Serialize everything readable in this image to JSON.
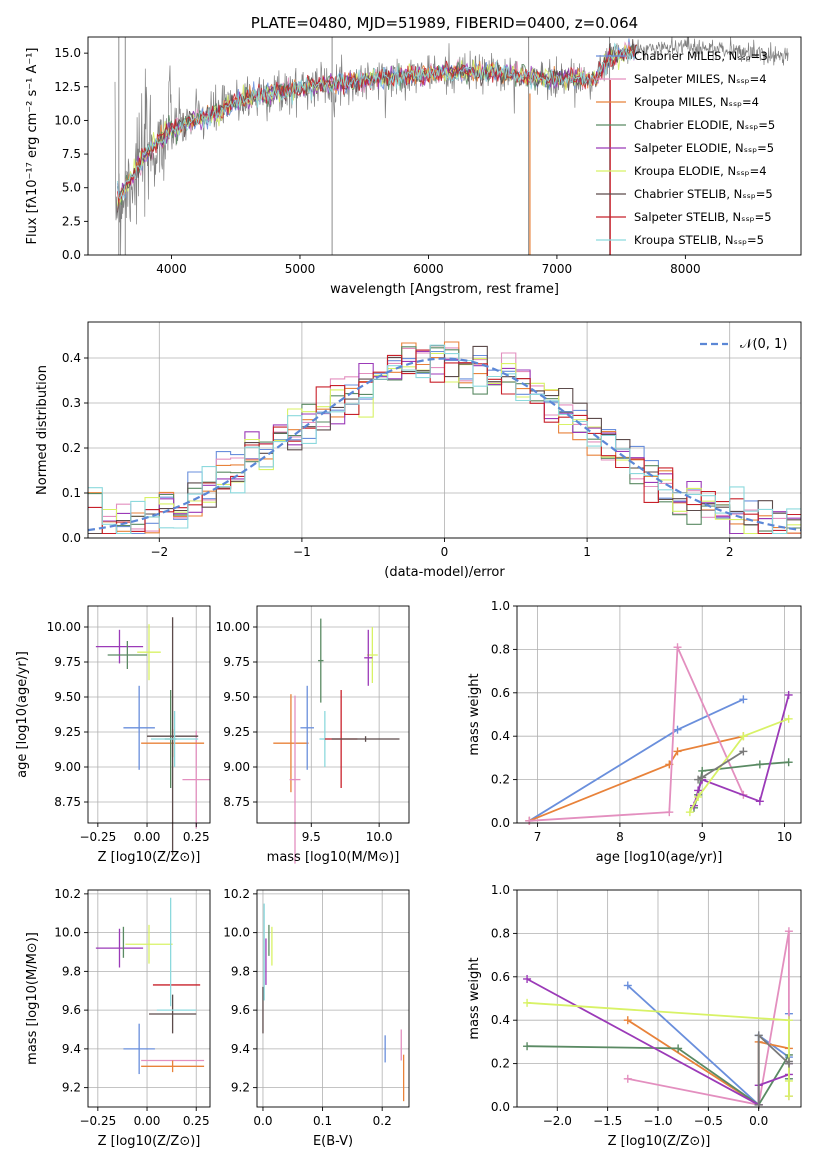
{
  "colors": [
    "#6a8fdc",
    "#e8823a",
    "#dd8c6d",
    "#5a8a63",
    "#9b3ab8",
    "#d8f266",
    "#5c4b4b",
    "#c8202a",
    "#8cd9dd",
    "#e38fbf",
    "#7a7a7a"
  ],
  "chart_data": [
    {
      "id": "spectrum",
      "type": "line",
      "title": "PLATE=0480, MJD=51989, FIBERID=0400, z=0.064",
      "xlabel": "wavelength [Angstrom, rest frame]",
      "ylabel": "Flux [fλ10⁻¹⁷ erg cm⁻² s⁻¹ A⁻¹]",
      "xlim": [
        3350,
        8900
      ],
      "ylim": [
        0,
        16.2
      ],
      "xticks": [
        4000,
        5000,
        6000,
        7000,
        8000
      ],
      "yticks": [
        0.0,
        2.5,
        5.0,
        7.5,
        10.0,
        12.5,
        15.0
      ],
      "grid": false,
      "legend_position": "upper right",
      "x": [
        3600,
        3700,
        3800,
        3900,
        4000,
        4100,
        4200,
        4300,
        4400,
        4500,
        4700,
        4900,
        5100,
        5300,
        5500,
        5700,
        5900,
        6100,
        6300,
        6500,
        6700,
        6900,
        7100,
        7300,
        7400,
        7600,
        7800,
        8000,
        8200,
        8400,
        8600
      ],
      "model_flux": [
        4.3,
        6.0,
        7.5,
        8.5,
        9.3,
        9.6,
        10.2,
        10.4,
        10.8,
        11.4,
        11.9,
        12.2,
        12.6,
        12.7,
        13.0,
        13.2,
        13.4,
        13.5,
        13.6,
        13.6,
        13.3,
        13.1,
        13.2,
        13.0,
        14.6,
        15.2,
        15.4,
        15.6,
        15.3,
        15.2,
        14.9
      ],
      "data_series_name": "data",
      "series": [
        {
          "name": "Chabrier MILES, N_SSP=3",
          "color": "#6a8fdc"
        },
        {
          "name": "Salpeter MILES, N_SSP=4",
          "color": "#e38fbf"
        },
        {
          "name": "Kroupa MILES, N_SSP=4",
          "color": "#e8823a"
        },
        {
          "name": "Chabrier ELODIE, N_SSP=5",
          "color": "#5a8a63"
        },
        {
          "name": "Salpeter ELODIE, N_SSP=5",
          "color": "#9b3ab8"
        },
        {
          "name": "Kroupa ELODIE, N_SSP=4",
          "color": "#d8f266"
        },
        {
          "name": "Chabrier STELIB, N_SSP=5",
          "color": "#5c4b4b"
        },
        {
          "name": "Salpeter STELIB, N_SSP=5",
          "color": "#c8202a"
        },
        {
          "name": "Kroupa STELIB, N_SSP=5",
          "color": "#8cd9dd"
        }
      ]
    },
    {
      "id": "residuals",
      "type": "histogram",
      "xlabel": "(data-model)/error",
      "ylabel": "Normed distribution",
      "xlim": [
        -2.5,
        2.5
      ],
      "ylim": [
        0,
        0.48
      ],
      "xticks": [
        -2,
        -1,
        0,
        1,
        2
      ],
      "yticks": [
        0.0,
        0.1,
        0.2,
        0.3,
        0.4
      ],
      "grid": true,
      "bin_width": 0.1,
      "legend": [
        {
          "name": "𝒩(0, 1)",
          "style": "dashed",
          "color": "#5b87d6"
        }
      ],
      "legend_position": "upper right"
    },
    {
      "id": "age_vs_Z",
      "type": "errorbar",
      "xlabel": "Z [log10(Z/Z⊙)]",
      "ylabel": "age  [log10(age/yr)]",
      "xlim": [
        -0.3,
        0.32
      ],
      "ylim": [
        8.6,
        10.15
      ],
      "xticks": [
        -0.25,
        0.0,
        0.25
      ],
      "yticks": [
        8.75,
        9.0,
        9.25,
        9.5,
        9.75,
        10.0
      ],
      "grid": true,
      "points": [
        {
          "x": -0.04,
          "y": 9.28,
          "xerr": 0.08,
          "yerr": 0.3,
          "color": "#6a8fdc"
        },
        {
          "x": 0.25,
          "y": 8.91,
          "xerr": 0.07,
          "yerr": 0.35,
          "color": "#e38fbf"
        },
        {
          "x": 0.13,
          "y": 9.17,
          "xerr": 0.16,
          "yerr": 0.1,
          "color": "#e8823a"
        },
        {
          "x": 0.12,
          "y": 9.2,
          "xerr": 0.03,
          "yerr": 0.35,
          "color": "#5a8a63"
        },
        {
          "x": -0.14,
          "y": 9.86,
          "xerr": 0.12,
          "yerr": 0.12,
          "color": "#9b3ab8"
        },
        {
          "x": 0.01,
          "y": 9.82,
          "xerr": 0.06,
          "yerr": 0.2,
          "color": "#d8f266"
        },
        {
          "x": -0.1,
          "y": 9.8,
          "xerr": 0.1,
          "yerr": 0.1,
          "color": "#5a8a63"
        },
        {
          "x": 0.13,
          "y": 9.22,
          "xerr": 0.13,
          "yerr": 0.85,
          "color": "#5c4b4b"
        },
        {
          "x": 0.14,
          "y": 9.2,
          "xerr": 0.12,
          "yerr": 0.2,
          "color": "#8cd9dd"
        }
      ]
    },
    {
      "id": "age_vs_mass",
      "type": "errorbar",
      "xlabel": "mass [log10(M/M⊙)]",
      "ylabel": "",
      "xlim": [
        9.1,
        10.22
      ],
      "ylim": [
        8.6,
        10.15
      ],
      "xticks": [
        9.5,
        10.0
      ],
      "yticks": [
        8.75,
        9.0,
        9.25,
        9.5,
        9.75,
        10.0
      ],
      "grid": true,
      "points": [
        {
          "x": 9.35,
          "y": 9.17,
          "xerr": 0.13,
          "yerr": 0.35,
          "color": "#e8823a"
        },
        {
          "x": 9.38,
          "y": 8.91,
          "xerr": 0.04,
          "yerr": 0.6,
          "color": "#e38fbf"
        },
        {
          "x": 9.47,
          "y": 9.28,
          "xerr": 0.05,
          "yerr": 0.3,
          "color": "#6a8fdc"
        },
        {
          "x": 9.6,
          "y": 9.2,
          "xerr": 0.04,
          "yerr": 0.2,
          "color": "#8cd9dd"
        },
        {
          "x": 9.72,
          "y": 9.2,
          "xerr": 0.12,
          "yerr": 0.35,
          "color": "#c8202a"
        },
        {
          "x": 9.9,
          "y": 9.2,
          "xerr": 0.25,
          "yerr": 0.02,
          "color": "#5c4b4b"
        },
        {
          "x": 9.95,
          "y": 9.8,
          "xerr": 0.04,
          "yerr": 0.2,
          "color": "#d8f266"
        },
        {
          "x": 9.92,
          "y": 9.78,
          "xerr": 0.03,
          "yerr": 0.2,
          "color": "#9b3ab8"
        },
        {
          "x": 9.57,
          "y": 9.76,
          "xerr": 0.02,
          "yerr": 0.3,
          "color": "#5a8a63"
        }
      ]
    },
    {
      "id": "weight_vs_age",
      "type": "line",
      "xlabel": "age  [log10(age/yr)]",
      "ylabel": "mass weight",
      "xlim": [
        6.75,
        10.2
      ],
      "ylim": [
        0,
        1.0
      ],
      "xticks": [
        7,
        8,
        9,
        10
      ],
      "yticks": [
        0.0,
        0.2,
        0.4,
        0.6,
        0.8,
        1.0
      ],
      "grid": true,
      "series": [
        {
          "color": "#6a8fdc",
          "x": [
            6.9,
            8.7,
            9.5
          ],
          "y": [
            0.01,
            0.43,
            0.57
          ]
        },
        {
          "color": "#e8823a",
          "x": [
            6.9,
            8.6,
            8.7,
            9.5
          ],
          "y": [
            0.01,
            0.27,
            0.33,
            0.4
          ]
        },
        {
          "color": "#e38fbf",
          "x": [
            6.9,
            8.6,
            8.7,
            9.5
          ],
          "y": [
            0.01,
            0.05,
            0.81,
            0.13
          ]
        },
        {
          "color": "#5a8a63",
          "x": [
            8.9,
            8.95,
            9.0,
            9.7,
            10.05
          ],
          "y": [
            0.07,
            0.13,
            0.24,
            0.27,
            0.28
          ]
        },
        {
          "color": "#9b3ab8",
          "x": [
            8.9,
            8.95,
            9.0,
            9.7,
            10.05
          ],
          "y": [
            0.08,
            0.15,
            0.2,
            0.1,
            0.59
          ]
        },
        {
          "color": "#d8f266",
          "x": [
            8.85,
            8.95,
            9.5,
            10.05
          ],
          "y": [
            0.05,
            0.12,
            0.4,
            0.48
          ]
        },
        {
          "color": "#7a7a7a",
          "x": [
            8.95,
            9.0,
            9.5
          ],
          "y": [
            0.2,
            0.21,
            0.33
          ]
        }
      ]
    },
    {
      "id": "mass_vs_Z",
      "type": "errorbar",
      "xlabel": "Z [log10(Z/Z⊙)]",
      "ylabel": "mass [log10(M/M⊙)]",
      "xlim": [
        -0.3,
        0.32
      ],
      "ylim": [
        9.1,
        10.22
      ],
      "xticks": [
        -0.25,
        0.0,
        0.25
      ],
      "yticks": [
        9.2,
        9.4,
        9.6,
        9.8,
        10.0,
        10.2
      ],
      "grid": true,
      "points": [
        {
          "x": -0.04,
          "y": 9.4,
          "xerr": 0.08,
          "yerr": 0.13,
          "color": "#6a8fdc"
        },
        {
          "x": 0.13,
          "y": 9.34,
          "xerr": 0.16,
          "yerr": 0.0,
          "color": "#e38fbf"
        },
        {
          "x": 0.13,
          "y": 9.31,
          "xerr": 0.16,
          "yerr": 0.03,
          "color": "#e8823a"
        },
        {
          "x": 0.13,
          "y": 9.58,
          "xerr": 0.12,
          "yerr": 0.1,
          "color": "#5c4b4b"
        },
        {
          "x": 0.15,
          "y": 9.6,
          "xerr": 0.1,
          "yerr": 0.0,
          "color": "#8cd9dd"
        },
        {
          "x": 0.15,
          "y": 9.73,
          "xerr": 0.12,
          "yerr": 0.0,
          "color": "#c8202a"
        },
        {
          "x": -0.14,
          "y": 9.92,
          "xerr": 0.12,
          "yerr": 0.1,
          "color": "#9b3ab8"
        },
        {
          "x": 0.01,
          "y": 9.94,
          "xerr": 0.12,
          "yerr": 0.1,
          "color": "#d8f266"
        },
        {
          "x": -0.12,
          "y": 9.95,
          "xerr": 0.0,
          "yerr": 0.08,
          "color": "#5a8a63"
        },
        {
          "x": 0.12,
          "y": 9.9,
          "xerr": 0.0,
          "yerr": 0.28,
          "color": "#8cd9dd"
        }
      ]
    },
    {
      "id": "mass_vs_EBV",
      "type": "errorbar",
      "xlabel": "E(B-V)",
      "ylabel": "",
      "xlim": [
        -0.01,
        0.245
      ],
      "ylim": [
        9.1,
        10.22
      ],
      "xticks": [
        0.0,
        0.1,
        0.2
      ],
      "yticks": [
        9.2,
        9.4,
        9.6,
        9.8,
        10.0,
        10.2
      ],
      "grid": true,
      "points": [
        {
          "x": 0.0,
          "y": 9.6,
          "xerr": 0.0,
          "yerr": 0.12,
          "color": "#5c4b4b"
        },
        {
          "x": 0.002,
          "y": 9.9,
          "xerr": 0.0,
          "yerr": 0.25,
          "color": "#8cd9dd"
        },
        {
          "x": 0.005,
          "y": 9.85,
          "xerr": 0.0,
          "yerr": 0.12,
          "color": "#9b3ab8"
        },
        {
          "x": 0.01,
          "y": 9.96,
          "xerr": 0.0,
          "yerr": 0.08,
          "color": "#5a8a63"
        },
        {
          "x": 0.015,
          "y": 9.93,
          "xerr": 0.0,
          "yerr": 0.1,
          "color": "#d8f266"
        },
        {
          "x": 0.205,
          "y": 9.4,
          "xerr": 0.0,
          "yerr": 0.07,
          "color": "#6a8fdc"
        },
        {
          "x": 0.232,
          "y": 9.42,
          "xerr": 0.0,
          "yerr": 0.08,
          "color": "#e38fbf"
        },
        {
          "x": 0.236,
          "y": 9.25,
          "xerr": 0.0,
          "yerr": 0.12,
          "color": "#e8823a"
        }
      ]
    },
    {
      "id": "weight_vs_Z",
      "type": "line",
      "xlabel": "Z [log10(Z/Z⊙)]",
      "ylabel": "mass weight",
      "xlim": [
        -2.4,
        0.42
      ],
      "ylim": [
        0,
        1.0
      ],
      "xticks": [
        -2.0,
        -1.5,
        -1.0,
        -0.5,
        0.0
      ],
      "yticks": [
        0.0,
        0.2,
        0.4,
        0.6,
        0.8,
        1.0
      ],
      "grid": true,
      "series": [
        {
          "color": "#6a8fdc",
          "x": [
            -1.3,
            0.0,
            0.0,
            0.3,
            0.3
          ],
          "y": [
            0.56,
            0.01,
            0.33,
            0.23,
            0.43
          ]
        },
        {
          "color": "#e8823a",
          "x": [
            -1.3,
            0.0,
            0.0,
            0.3
          ],
          "y": [
            0.4,
            0.01,
            0.3,
            0.27
          ]
        },
        {
          "color": "#e38fbf",
          "x": [
            -1.3,
            0.0,
            0.3,
            0.3
          ],
          "y": [
            0.13,
            0.01,
            0.81,
            0.05
          ]
        },
        {
          "color": "#5a8a63",
          "x": [
            -2.3,
            -0.8,
            0.0,
            0.3,
            0.3
          ],
          "y": [
            0.28,
            0.27,
            0.01,
            0.24,
            0.13
          ]
        },
        {
          "color": "#9b3ab8",
          "x": [
            -2.3,
            0.0,
            0.0,
            0.3,
            0.3
          ],
          "y": [
            0.59,
            0.01,
            0.1,
            0.15,
            0.2
          ]
        },
        {
          "color": "#d8f266",
          "x": [
            -2.3,
            0.3,
            0.3,
            0.3
          ],
          "y": [
            0.48,
            0.4,
            0.05,
            0.12
          ]
        },
        {
          "color": "#7a7a7a",
          "x": [
            0.0,
            0.0,
            0.3,
            0.3
          ],
          "y": [
            0.01,
            0.33,
            0.2,
            0.21
          ]
        }
      ]
    }
  ]
}
